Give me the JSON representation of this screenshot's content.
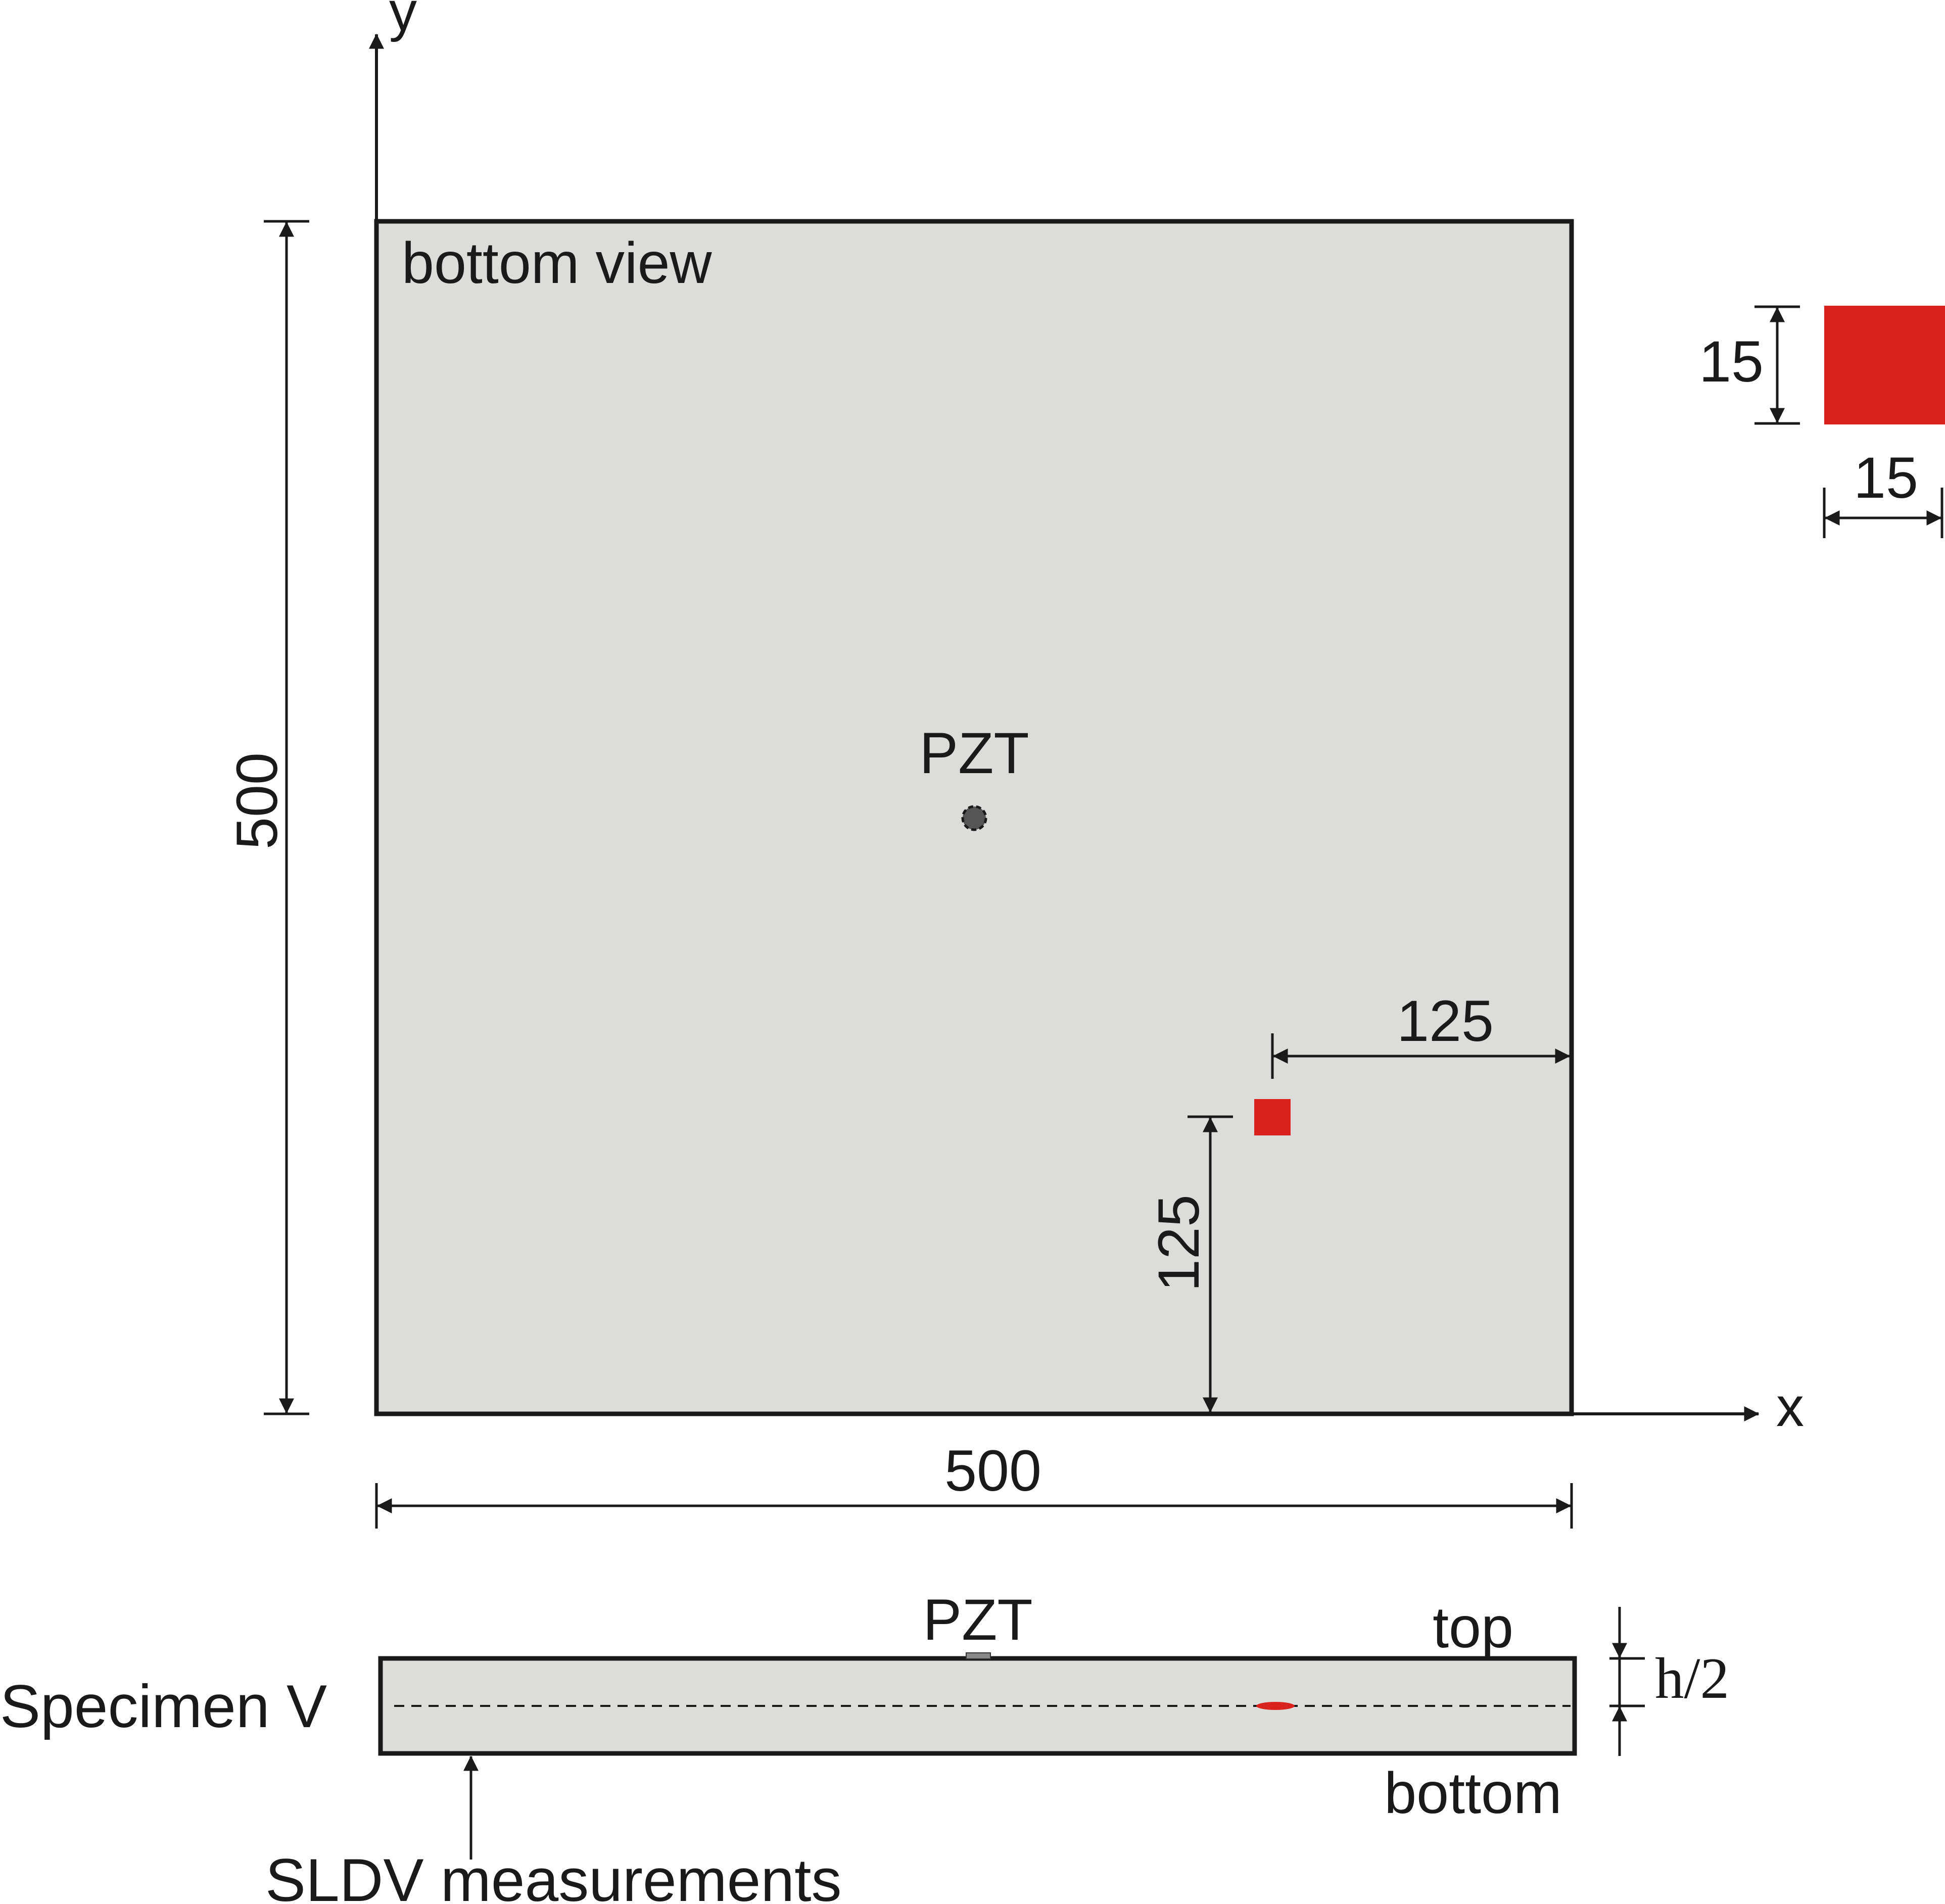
{
  "labels": {
    "axis_y": "y",
    "axis_x": "x",
    "view_label": "bottom view",
    "pzt_top": "PZT",
    "dim_height": "500",
    "dim_width": "500",
    "dim_right_offset": "125",
    "dim_bottom_offset": "125",
    "inset_height": "15",
    "inset_width": "15",
    "pzt_section": "PZT",
    "top": "top",
    "bottom": "bottom",
    "specimen": "Specimen V",
    "half_thickness": "h/2",
    "sldv": "SLDV measurements"
  },
  "colors": {
    "plate_fill": "#dcdcdb",
    "damage_red": "#d9211e",
    "line": "#1a1a1a",
    "pzt_fill": "#555555"
  }
}
